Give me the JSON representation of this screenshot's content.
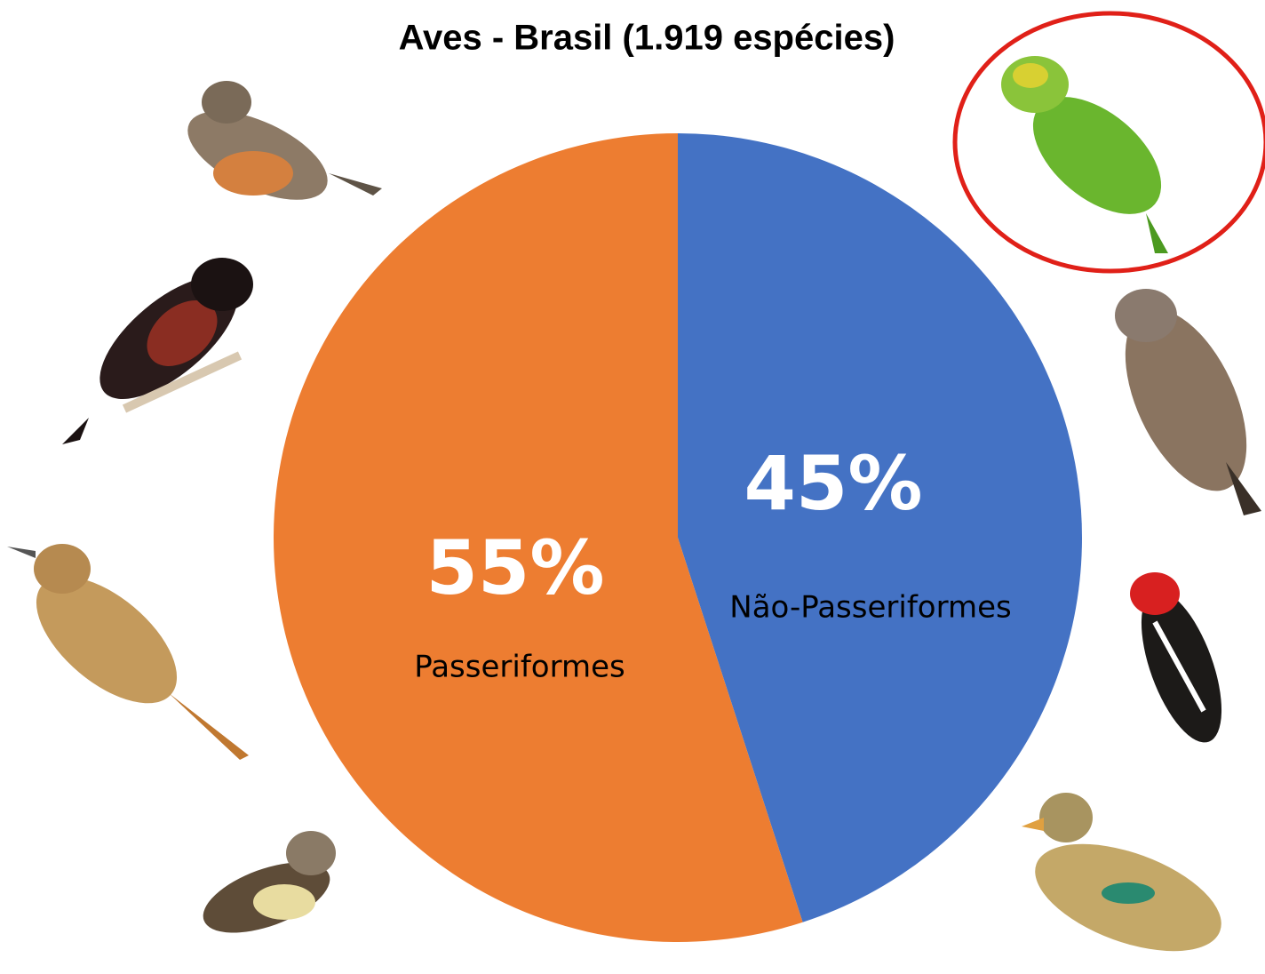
{
  "chart_data": {
    "type": "pie",
    "title": "Aves - Brasil (1.919 espécies)",
    "categories": [
      "Não-Passeriformes",
      "Passeriformes"
    ],
    "values": [
      45,
      55
    ],
    "value_labels": [
      "45%",
      "55%"
    ],
    "colors": [
      "#4472c4",
      "#ed7d31"
    ]
  }
}
